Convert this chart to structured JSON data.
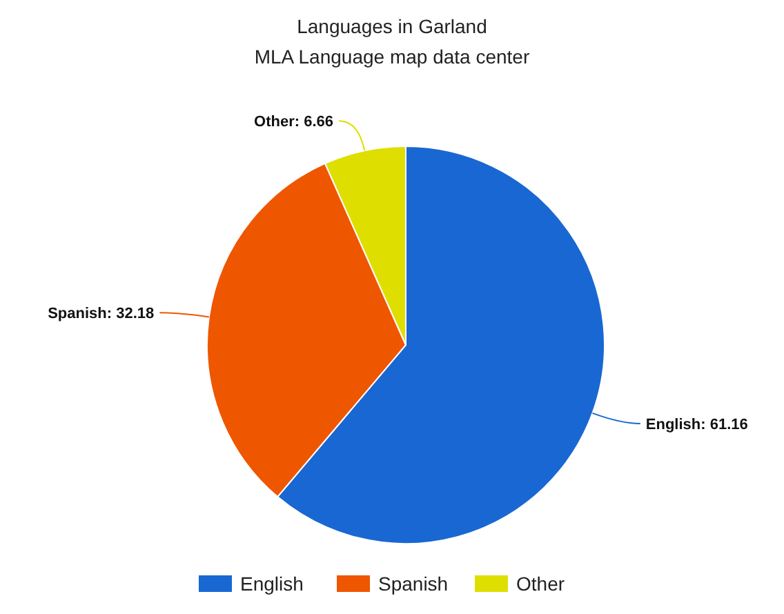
{
  "chart_data": {
    "type": "pie",
    "title": "Languages in Garland",
    "subtitle": "MLA Language map data center",
    "categories": [
      "English",
      "Spanish",
      "Other"
    ],
    "values": [
      61.16,
      32.18,
      6.66
    ],
    "value_labels": [
      "English: 61.16",
      "Spanish: 32.18",
      "Other: 6.66"
    ],
    "colors": [
      "#1967d2",
      "#ef5600",
      "#dede00"
    ],
    "legend": "bottom"
  }
}
